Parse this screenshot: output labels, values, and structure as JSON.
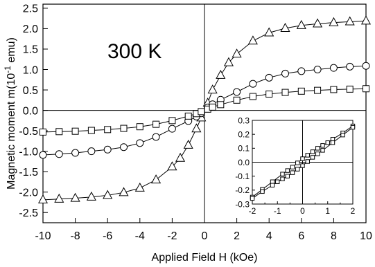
{
  "chart_data": [
    {
      "type": "scatter",
      "annotation": "300 K",
      "xlabel": "Applied Field H (kOe)",
      "ylabel": "Magnetic moment m(10",
      "ylabel_sup": "-1",
      "ylabel_suffix": " emu)",
      "xlim": [
        -10,
        10
      ],
      "ylim": [
        -2.75,
        2.6
      ],
      "x_ticks": [
        -10,
        -8,
        -6,
        -4,
        -2,
        0,
        2,
        4,
        6,
        8,
        10
      ],
      "x_tick_labels": [
        "-10",
        "-8",
        "-6",
        "-4",
        "-2",
        "0",
        "2",
        "4",
        "6",
        "8",
        "10"
      ],
      "y_ticks": [
        -2.5,
        -2.0,
        -1.5,
        -1.0,
        -0.5,
        0.0,
        0.5,
        1.0,
        1.5,
        2.0,
        2.5
      ],
      "y_tick_labels": [
        "-2.5",
        "-2.0",
        "-1.5",
        "-1.0",
        "-0.5",
        "0.0",
        "0.5",
        "1.0",
        "1.5",
        "2.0",
        "2.5"
      ],
      "grid": false,
      "reference_lines": {
        "x": 0,
        "y": 0
      },
      "series": [
        {
          "marker": "triangle",
          "x": [
            -10,
            -9,
            -8,
            -7,
            -6,
            -5,
            -4,
            -3,
            -2,
            -1.5,
            -1,
            -0.5,
            -0.2,
            0.2,
            0.5,
            1,
            1.5,
            2,
            3,
            4,
            5,
            6,
            7,
            8,
            9,
            10
          ],
          "y": [
            -2.19,
            -2.17,
            -2.15,
            -2.12,
            -2.08,
            -2.01,
            -1.9,
            -1.7,
            -1.38,
            -1.17,
            -0.85,
            -0.45,
            -0.18,
            0.18,
            0.5,
            0.86,
            1.17,
            1.38,
            1.7,
            1.9,
            2.01,
            2.08,
            2.12,
            2.15,
            2.17,
            2.19
          ]
        },
        {
          "marker": "circle",
          "x": [
            -10,
            -9,
            -8,
            -7,
            -6,
            -5,
            -4,
            -3,
            -2,
            -1,
            -0.5,
            -0.2,
            0.2,
            0.5,
            1,
            2,
            3,
            4,
            5,
            6,
            7,
            8,
            9,
            10
          ],
          "y": [
            -1.09,
            -1.07,
            -1.04,
            -1.0,
            -0.96,
            -0.9,
            -0.8,
            -0.65,
            -0.45,
            -0.26,
            -0.15,
            -0.07,
            0.07,
            0.15,
            0.26,
            0.45,
            0.65,
            0.8,
            0.9,
            0.96,
            1.0,
            1.04,
            1.07,
            1.09
          ]
        },
        {
          "marker": "square",
          "x": [
            -10,
            -9,
            -8,
            -7,
            -6,
            -5,
            -4,
            -3,
            -2,
            -1,
            -0.5,
            -0.2,
            0.2,
            0.5,
            1,
            2,
            3,
            4,
            5,
            6,
            7,
            8,
            9,
            10
          ],
          "y": [
            -0.53,
            -0.52,
            -0.51,
            -0.49,
            -0.47,
            -0.44,
            -0.4,
            -0.34,
            -0.25,
            -0.14,
            -0.08,
            -0.03,
            0.03,
            0.08,
            0.14,
            0.25,
            0.34,
            0.4,
            0.44,
            0.47,
            0.49,
            0.51,
            0.52,
            0.53
          ]
        }
      ]
    },
    {
      "type": "scatter",
      "role": "inset",
      "xlim": [
        -2,
        2
      ],
      "ylim": [
        -0.3,
        0.3
      ],
      "x_ticks": [
        -2,
        -1,
        0,
        1,
        2
      ],
      "x_tick_labels": [
        "-2",
        "-1",
        "0",
        "1",
        "2"
      ],
      "y_ticks": [
        -0.3,
        -0.2,
        -0.1,
        0.0,
        0.1,
        0.2,
        0.3
      ],
      "y_tick_labels": [
        "-0.3",
        "-0.2",
        "-0.1",
        "0.0",
        "0.1",
        "0.2",
        "0.3"
      ],
      "grid": false,
      "reference_lines": {
        "x": 0,
        "y": 0
      },
      "series": [
        {
          "marker": "square",
          "branch": "upper",
          "x": [
            -2,
            -1.6,
            -1.2,
            -0.8,
            -0.6,
            -0.4,
            -0.2,
            0,
            0.2,
            0.4,
            0.6,
            0.8,
            1.0,
            1.2,
            1.6,
            2
          ],
          "y": [
            -0.25,
            -0.195,
            -0.14,
            -0.085,
            -0.06,
            -0.035,
            -0.005,
            0.025,
            0.05,
            0.075,
            0.1,
            0.12,
            0.14,
            0.165,
            0.21,
            0.26
          ]
        },
        {
          "marker": "square",
          "branch": "lower",
          "x": [
            -2,
            -1.6,
            -1.2,
            -1.0,
            -0.8,
            -0.6,
            -0.4,
            -0.2,
            0,
            0.2,
            0.4,
            0.6,
            0.8,
            1.2,
            1.6,
            2
          ],
          "y": [
            -0.26,
            -0.21,
            -0.165,
            -0.14,
            -0.12,
            -0.1,
            -0.075,
            -0.05,
            -0.025,
            0.005,
            0.035,
            0.06,
            0.085,
            0.14,
            0.195,
            0.25
          ]
        }
      ]
    }
  ]
}
